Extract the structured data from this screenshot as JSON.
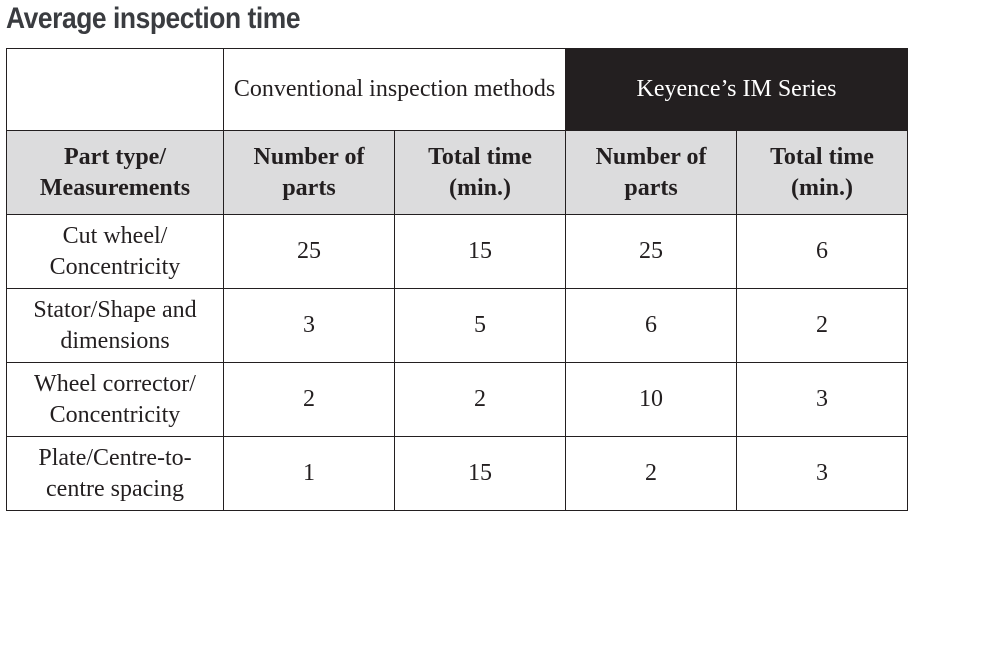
{
  "title": "Average inspection time",
  "table": {
    "group_headers": {
      "conventional": "Conventional inspection methods",
      "keyence": "Keyence’s IM Series"
    },
    "columns": [
      "Part type/ Measurements",
      "Number of parts",
      "Total time (min.)",
      "Number of parts",
      "Total time (min.)"
    ],
    "rows": [
      [
        "Cut wheel/ Concentricity",
        "25",
        "15",
        "25",
        "6"
      ],
      [
        "Stator/Shape and dimensions",
        "3",
        "5",
        "6",
        "2"
      ],
      [
        "Wheel corrector/ Concentricity",
        "2",
        "2",
        "10",
        "3"
      ],
      [
        "Plate/Centre-to-centre spacing",
        "1",
        "15",
        "2",
        "3"
      ]
    ]
  },
  "colors": {
    "title": "#3a3c40",
    "header_fill": "#dcdcdd",
    "keyence_fill": "#231f20",
    "text": "#231f20"
  }
}
